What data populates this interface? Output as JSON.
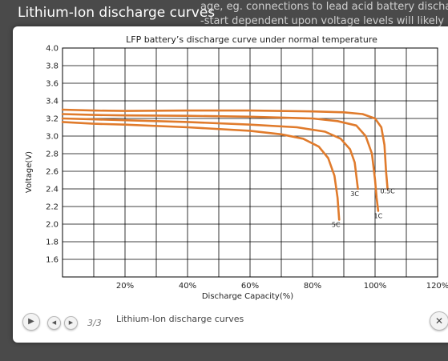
{
  "page": {
    "title": "Lithium-Ion discharge curves",
    "background_lines": [
      "age, eg. connections to lead acid battery discharg",
      "-start dependent upon voltage levels will likely no"
    ]
  },
  "lightbox": {
    "counter": "3/3",
    "caption": "Lithium-Ion discharge curves",
    "controls": {
      "play_icon": "play-icon",
      "prev_icon": "prev-icon",
      "next_icon": "next-icon",
      "close_icon": "close-icon"
    }
  },
  "chart_data": {
    "type": "line",
    "title": "LFP battery’s discharge curve under normal temperature",
    "xlabel": "Discharge Capacity(%)",
    "ylabel": "Voltage(V)",
    "xlim": [
      0,
      120
    ],
    "ylim": [
      1.4,
      4.0
    ],
    "x_ticks": [
      0,
      10,
      20,
      30,
      40,
      50,
      60,
      70,
      80,
      90,
      100,
      110,
      120
    ],
    "x_tick_labels": [
      "20%",
      "40%",
      "60%",
      "80%",
      "100%",
      "120%"
    ],
    "x_tick_label_values": [
      20,
      40,
      60,
      80,
      100,
      120
    ],
    "y_ticks": [
      1.6,
      1.8,
      2.0,
      2.2,
      2.4,
      2.6,
      2.8,
      3.0,
      3.2,
      3.4,
      3.6,
      3.8,
      4.0
    ],
    "y_tick_labels": [
      "1.6",
      "1.8",
      "2.0",
      "2.2",
      "2.4",
      "2.6",
      "2.8",
      "3.0",
      "3.2",
      "3.4",
      "3.6",
      "3.8",
      "4.0"
    ],
    "grid": true,
    "line_color": "#e07b2c",
    "series": [
      {
        "name": "0.5C",
        "x": [
          0,
          10,
          20,
          40,
          60,
          80,
          90,
          96,
          100,
          102,
          103,
          103.5,
          104
        ],
        "y": [
          3.3,
          3.29,
          3.285,
          3.29,
          3.29,
          3.28,
          3.27,
          3.25,
          3.2,
          3.1,
          2.9,
          2.6,
          2.4
        ],
        "label_at": [
          104,
          2.35
        ]
      },
      {
        "name": "1C",
        "x": [
          0,
          10,
          20,
          40,
          60,
          80,
          88,
          94,
          97,
          99,
          100,
          100.5,
          101
        ],
        "y": [
          3.25,
          3.24,
          3.235,
          3.23,
          3.22,
          3.2,
          3.17,
          3.12,
          3.0,
          2.8,
          2.5,
          2.3,
          2.15
        ],
        "label_at": [
          101,
          2.07
        ]
      },
      {
        "name": "3C",
        "x": [
          0,
          10,
          20,
          40,
          60,
          75,
          84,
          89,
          92,
          93.5,
          94,
          94.5
        ],
        "y": [
          3.2,
          3.19,
          3.18,
          3.16,
          3.13,
          3.1,
          3.05,
          2.97,
          2.85,
          2.7,
          2.55,
          2.4
        ],
        "label_at": [
          93.5,
          2.32
        ]
      },
      {
        "name": "5C",
        "x": [
          0,
          10,
          20,
          40,
          60,
          70,
          77,
          82,
          85,
          87,
          88,
          88.5
        ],
        "y": [
          3.16,
          3.14,
          3.13,
          3.1,
          3.06,
          3.02,
          2.97,
          2.88,
          2.75,
          2.55,
          2.3,
          2.05
        ],
        "label_at": [
          87.5,
          1.97
        ]
      }
    ]
  }
}
